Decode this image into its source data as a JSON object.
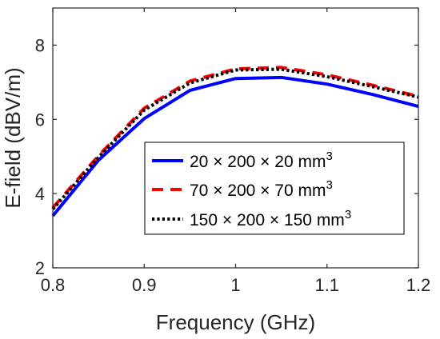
{
  "chart_data": {
    "type": "line",
    "title": "",
    "xlabel": "Frequency (GHz)",
    "ylabel": "E-field (dBV/m)",
    "xlim": [
      0.8,
      1.2
    ],
    "ylim": [
      2,
      9
    ],
    "xticks": [
      0.8,
      0.9,
      1,
      1.1,
      1.2
    ],
    "xtick_labels": [
      "0.8",
      "0.9",
      "1",
      "1.1",
      "1.2"
    ],
    "yticks": [
      2,
      4,
      6,
      8
    ],
    "ytick_labels": [
      "2",
      "4",
      "6",
      "8"
    ],
    "grid": false,
    "legend_position": "right",
    "x": [
      0.8,
      0.85,
      0.9,
      0.95,
      1.0,
      1.05,
      1.1,
      1.15,
      1.2
    ],
    "series": [
      {
        "name": "20 × 200 × 20 mm",
        "exponent": "3",
        "color": "#0000ff",
        "style": "solid",
        "values": [
          3.4,
          4.9,
          6.02,
          6.78,
          7.1,
          7.13,
          6.95,
          6.67,
          6.35
        ]
      },
      {
        "name": "70 × 200 × 70 mm",
        "exponent": "3",
        "color": "#ff0000",
        "style": "dashed",
        "values": [
          3.62,
          5.02,
          6.3,
          7.03,
          7.36,
          7.4,
          7.2,
          6.92,
          6.62
        ]
      },
      {
        "name": "150 × 200 × 150 mm",
        "exponent": "3",
        "color": "#000000",
        "style": "dotted",
        "values": [
          3.58,
          4.98,
          6.25,
          6.98,
          7.33,
          7.35,
          7.15,
          6.88,
          6.6
        ]
      }
    ]
  }
}
